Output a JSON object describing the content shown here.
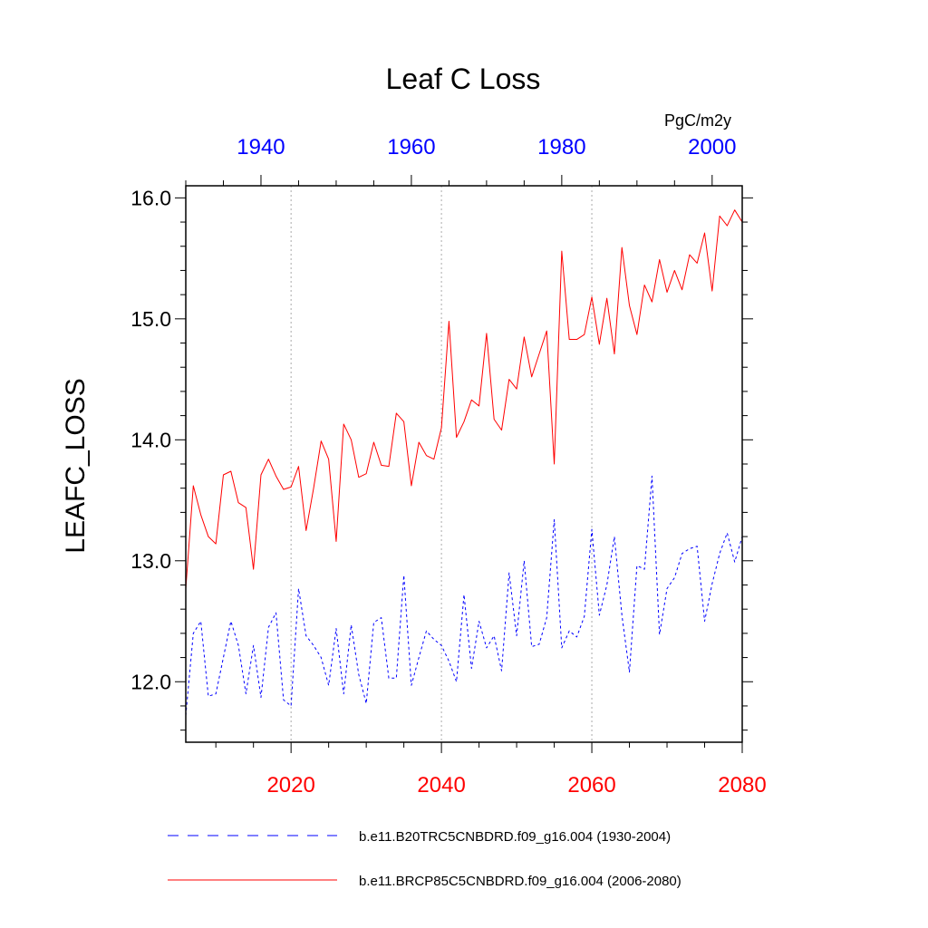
{
  "chart_data": {
    "type": "line",
    "title": "Leaf C Loss",
    "ylabel": "LEAFC_LOSS",
    "units": "PgC/m2y",
    "ylim": [
      11.5,
      16.1
    ],
    "y_ticks": [
      "12.0",
      "13.0",
      "14.0",
      "15.0",
      "16.0"
    ],
    "bottom_axis": {
      "color": "#ff0000",
      "range": [
        2006,
        2080
      ],
      "ticks": [
        "2020",
        "2040",
        "2060",
        "2080"
      ]
    },
    "top_axis": {
      "color": "#0000ff",
      "range": [
        1930,
        2004
      ],
      "ticks": [
        "1940",
        "1960",
        "1980",
        "2000"
      ]
    },
    "grid": "vertical dotted at bottom-axis major ticks",
    "legend_placement": "bottom",
    "series": [
      {
        "name": "b.e11.B20TRC5CNBDRD.f09_g16.004 (1930-2004)",
        "axis": "top",
        "color": "#0000ff",
        "style": "dashed",
        "x_start": 1930,
        "values": [
          11.72,
          12.4,
          12.5,
          11.88,
          11.9,
          12.2,
          12.5,
          12.3,
          11.9,
          12.3,
          11.87,
          12.45,
          12.57,
          11.85,
          11.8,
          12.77,
          12.38,
          12.3,
          12.2,
          11.97,
          12.44,
          11.9,
          12.47,
          12.06,
          11.82,
          12.49,
          12.53,
          12.03,
          12.03,
          12.88,
          11.97,
          12.2,
          12.42,
          12.35,
          12.3,
          12.17,
          12.0,
          12.72,
          12.11,
          12.5,
          12.28,
          12.38,
          12.09,
          12.9,
          12.38,
          13.0,
          12.29,
          12.31,
          12.53,
          13.34,
          12.28,
          12.42,
          12.37,
          12.54,
          13.26,
          12.55,
          12.8,
          13.2,
          12.55,
          12.08,
          12.96,
          12.93,
          13.7,
          12.39,
          12.77,
          12.86,
          13.06,
          13.1,
          13.12,
          12.5,
          12.81,
          13.06,
          13.23,
          12.99,
          13.2
        ]
      },
      {
        "name": "b.e11.BRCP85C5CNBDRD.f09_g16.004 (2006-2080)",
        "axis": "bottom",
        "color": "#ff0000",
        "style": "solid",
        "x_start": 2006,
        "values": [
          12.77,
          13.62,
          13.38,
          13.2,
          13.14,
          13.71,
          13.74,
          13.48,
          13.44,
          12.93,
          13.71,
          13.84,
          13.7,
          13.59,
          13.61,
          13.78,
          13.25,
          13.6,
          13.99,
          13.84,
          13.16,
          14.13,
          14.0,
          13.69,
          13.72,
          13.98,
          13.79,
          13.78,
          14.22,
          14.15,
          13.62,
          13.98,
          13.87,
          13.84,
          14.1,
          14.98,
          14.02,
          14.15,
          14.33,
          14.28,
          14.88,
          14.17,
          14.08,
          14.5,
          14.42,
          14.85,
          14.52,
          14.71,
          14.9,
          13.8,
          15.56,
          14.83,
          14.83,
          14.87,
          15.18,
          14.79,
          15.17,
          14.71,
          15.59,
          15.11,
          14.87,
          15.28,
          15.14,
          15.49,
          15.22,
          15.4,
          15.24,
          15.53,
          15.46,
          15.71,
          15.23,
          15.85,
          15.77,
          15.9,
          15.8
        ]
      }
    ]
  }
}
